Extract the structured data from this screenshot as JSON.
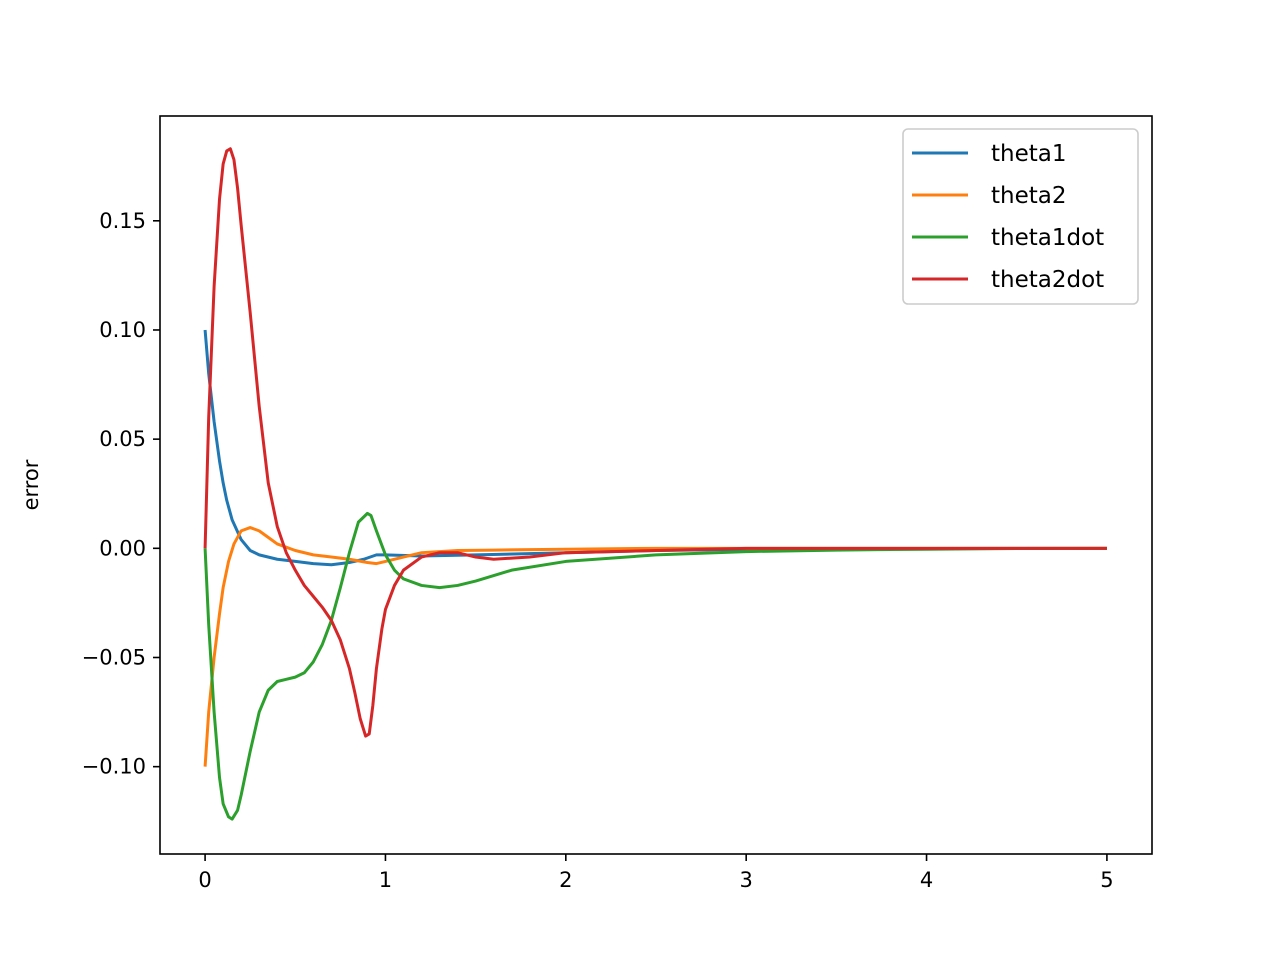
{
  "chart_data": {
    "type": "line",
    "title": "",
    "xlabel": "",
    "ylabel": "error",
    "xlim": [
      -0.25,
      5.25
    ],
    "ylim": [
      -0.14,
      0.198
    ],
    "x_ticks": [
      0,
      1,
      2,
      3,
      4,
      5
    ],
    "x_tick_labels": [
      "0",
      "1",
      "2",
      "3",
      "4",
      "5"
    ],
    "y_ticks": [
      -0.1,
      -0.05,
      0.0,
      0.05,
      0.1,
      0.15
    ],
    "y_tick_labels": [
      "−0.10",
      "−0.05",
      "0.00",
      "0.05",
      "0.10",
      "0.15"
    ],
    "grid": false,
    "legend_position": "top-right",
    "series": [
      {
        "name": "theta1",
        "color": "#1f77b4",
        "x": [
          0,
          0.02,
          0.05,
          0.08,
          0.1,
          0.12,
          0.15,
          0.2,
          0.25,
          0.3,
          0.4,
          0.5,
          0.6,
          0.7,
          0.8,
          0.88,
          0.95,
          1.0,
          1.2,
          1.5,
          2.0,
          2.5,
          3.0,
          3.5,
          4.0,
          4.5,
          5.0
        ],
        "y": [
          0.1,
          0.08,
          0.058,
          0.04,
          0.03,
          0.022,
          0.013,
          0.004,
          -0.001,
          -0.003,
          -0.005,
          -0.006,
          -0.007,
          -0.0075,
          -0.0065,
          -0.005,
          -0.003,
          -0.003,
          -0.0035,
          -0.003,
          -0.002,
          -0.001,
          -0.0005,
          -0.0002,
          -0.0001,
          0,
          0
        ]
      },
      {
        "name": "theta2",
        "color": "#ff7f0e",
        "x": [
          0,
          0.02,
          0.05,
          0.08,
          0.1,
          0.13,
          0.16,
          0.2,
          0.25,
          0.3,
          0.35,
          0.4,
          0.5,
          0.6,
          0.7,
          0.8,
          0.9,
          0.95,
          1.0,
          1.1,
          1.2,
          1.4,
          1.6,
          2.0,
          2.5,
          3.0,
          4.0,
          5.0
        ],
        "y": [
          -0.1,
          -0.075,
          -0.05,
          -0.03,
          -0.018,
          -0.006,
          0.002,
          0.008,
          0.0095,
          0.008,
          0.005,
          0.002,
          -0.001,
          -0.003,
          -0.004,
          -0.005,
          -0.0065,
          -0.007,
          -0.006,
          -0.004,
          -0.002,
          -0.001,
          -0.0008,
          -0.0004,
          0,
          0,
          0,
          0
        ]
      },
      {
        "name": "theta1dot",
        "color": "#2ca02c",
        "x": [
          0,
          0.02,
          0.05,
          0.08,
          0.1,
          0.13,
          0.15,
          0.18,
          0.2,
          0.25,
          0.3,
          0.35,
          0.4,
          0.45,
          0.5,
          0.55,
          0.6,
          0.65,
          0.7,
          0.75,
          0.8,
          0.85,
          0.9,
          0.92,
          0.95,
          1.0,
          1.05,
          1.1,
          1.2,
          1.3,
          1.4,
          1.5,
          1.7,
          2.0,
          2.5,
          3.0,
          3.5,
          4.0,
          4.5,
          5.0
        ],
        "y": [
          0,
          -0.035,
          -0.075,
          -0.105,
          -0.117,
          -0.123,
          -0.124,
          -0.12,
          -0.113,
          -0.093,
          -0.075,
          -0.065,
          -0.061,
          -0.06,
          -0.059,
          -0.057,
          -0.052,
          -0.044,
          -0.033,
          -0.018,
          -0.002,
          0.012,
          0.016,
          0.015,
          0.008,
          -0.003,
          -0.01,
          -0.014,
          -0.017,
          -0.018,
          -0.017,
          -0.015,
          -0.01,
          -0.006,
          -0.003,
          -0.0015,
          -0.0008,
          -0.0004,
          -0.0001,
          0
        ]
      },
      {
        "name": "theta2dot",
        "color": "#d62728",
        "x": [
          0,
          0.02,
          0.05,
          0.08,
          0.1,
          0.12,
          0.14,
          0.16,
          0.18,
          0.2,
          0.25,
          0.3,
          0.35,
          0.4,
          0.45,
          0.5,
          0.55,
          0.6,
          0.65,
          0.7,
          0.75,
          0.8,
          0.83,
          0.86,
          0.89,
          0.91,
          0.93,
          0.95,
          0.98,
          1.0,
          1.05,
          1.1,
          1.2,
          1.3,
          1.4,
          1.5,
          1.6,
          1.8,
          2.0,
          2.5,
          3.0,
          4.0,
          5.0
        ],
        "y": [
          0,
          0.06,
          0.12,
          0.16,
          0.176,
          0.182,
          0.183,
          0.178,
          0.165,
          0.148,
          0.108,
          0.065,
          0.03,
          0.01,
          -0.002,
          -0.01,
          -0.017,
          -0.022,
          -0.027,
          -0.033,
          -0.042,
          -0.055,
          -0.066,
          -0.078,
          -0.086,
          -0.085,
          -0.072,
          -0.055,
          -0.037,
          -0.028,
          -0.017,
          -0.01,
          -0.004,
          -0.002,
          -0.002,
          -0.004,
          -0.005,
          -0.004,
          -0.002,
          -0.001,
          0,
          0,
          0
        ]
      }
    ]
  }
}
